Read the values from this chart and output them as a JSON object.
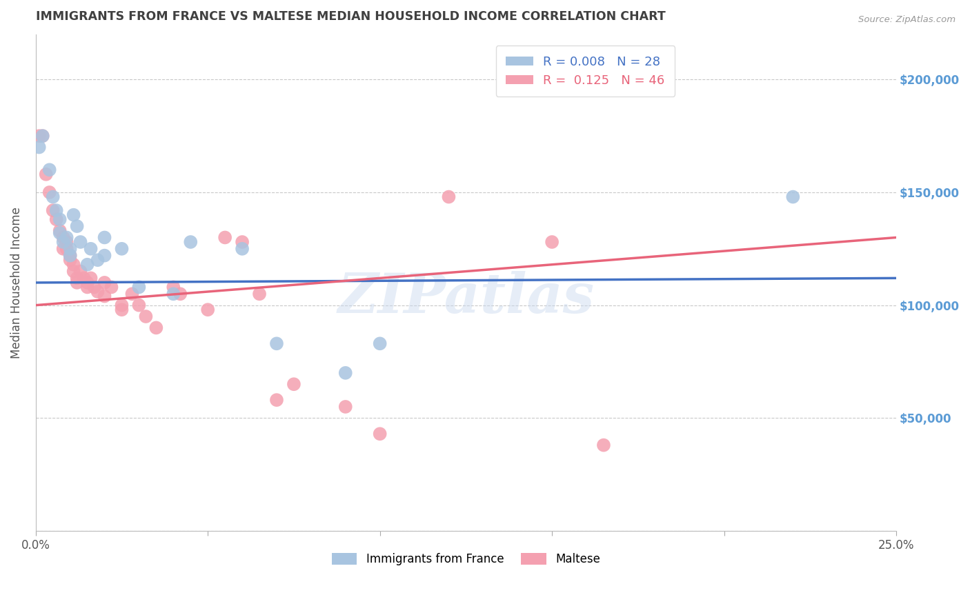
{
  "title": "IMMIGRANTS FROM FRANCE VS MALTESE MEDIAN HOUSEHOLD INCOME CORRELATION CHART",
  "source": "Source: ZipAtlas.com",
  "ylabel": "Median Household Income",
  "xlim": [
    0.0,
    0.25
  ],
  "ylim": [
    0,
    220000
  ],
  "xticks": [
    0.0,
    0.05,
    0.1,
    0.15,
    0.2,
    0.25
  ],
  "xtick_labels": [
    "0.0%",
    "",
    "",
    "",
    "",
    "25.0%"
  ],
  "yticks": [
    0,
    50000,
    100000,
    150000,
    200000
  ],
  "ytick_labels": [
    "",
    "$50,000",
    "$100,000",
    "$150,000",
    "$200,000"
  ],
  "legend_labels_bottom": [
    "Immigrants from France",
    "Maltese"
  ],
  "watermark": "ZIPatlas",
  "blue_scatter": [
    [
      0.001,
      170000
    ],
    [
      0.002,
      175000
    ],
    [
      0.004,
      160000
    ],
    [
      0.005,
      148000
    ],
    [
      0.006,
      142000
    ],
    [
      0.007,
      138000
    ],
    [
      0.007,
      132000
    ],
    [
      0.008,
      128000
    ],
    [
      0.009,
      130000
    ],
    [
      0.01,
      125000
    ],
    [
      0.01,
      122000
    ],
    [
      0.011,
      140000
    ],
    [
      0.012,
      135000
    ],
    [
      0.013,
      128000
    ],
    [
      0.015,
      118000
    ],
    [
      0.016,
      125000
    ],
    [
      0.018,
      120000
    ],
    [
      0.02,
      130000
    ],
    [
      0.02,
      122000
    ],
    [
      0.025,
      125000
    ],
    [
      0.03,
      108000
    ],
    [
      0.04,
      105000
    ],
    [
      0.045,
      128000
    ],
    [
      0.06,
      125000
    ],
    [
      0.07,
      83000
    ],
    [
      0.09,
      70000
    ],
    [
      0.1,
      83000
    ],
    [
      0.22,
      148000
    ]
  ],
  "pink_scatter": [
    [
      0.001,
      175000
    ],
    [
      0.002,
      175000
    ],
    [
      0.003,
      158000
    ],
    [
      0.004,
      150000
    ],
    [
      0.005,
      142000
    ],
    [
      0.006,
      138000
    ],
    [
      0.007,
      133000
    ],
    [
      0.008,
      130000
    ],
    [
      0.008,
      125000
    ],
    [
      0.009,
      128000
    ],
    [
      0.009,
      125000
    ],
    [
      0.01,
      122000
    ],
    [
      0.01,
      120000
    ],
    [
      0.011,
      118000
    ],
    [
      0.011,
      115000
    ],
    [
      0.012,
      112000
    ],
    [
      0.012,
      110000
    ],
    [
      0.013,
      115000
    ],
    [
      0.014,
      112000
    ],
    [
      0.015,
      110000
    ],
    [
      0.015,
      108000
    ],
    [
      0.016,
      112000
    ],
    [
      0.017,
      108000
    ],
    [
      0.018,
      106000
    ],
    [
      0.02,
      110000
    ],
    [
      0.02,
      104000
    ],
    [
      0.022,
      108000
    ],
    [
      0.025,
      100000
    ],
    [
      0.025,
      98000
    ],
    [
      0.028,
      105000
    ],
    [
      0.03,
      100000
    ],
    [
      0.032,
      95000
    ],
    [
      0.035,
      90000
    ],
    [
      0.04,
      108000
    ],
    [
      0.042,
      105000
    ],
    [
      0.05,
      98000
    ],
    [
      0.055,
      130000
    ],
    [
      0.06,
      128000
    ],
    [
      0.065,
      105000
    ],
    [
      0.07,
      58000
    ],
    [
      0.075,
      65000
    ],
    [
      0.09,
      55000
    ],
    [
      0.1,
      43000
    ],
    [
      0.12,
      148000
    ],
    [
      0.15,
      128000
    ],
    [
      0.165,
      38000
    ]
  ],
  "blue_line": {
    "x0": 0.0,
    "y0": 110000,
    "x1": 0.25,
    "y1": 112000
  },
  "pink_line": {
    "x0": 0.0,
    "y0": 100000,
    "x1": 0.25,
    "y1": 130000
  },
  "blue_line_color": "#4472c4",
  "pink_line_color": "#e8647a",
  "blue_dot_color": "#a8c4e0",
  "pink_dot_color": "#f4a0b0",
  "background_color": "#ffffff",
  "grid_color": "#c8c8c8",
  "title_color": "#404040",
  "axis_label_color": "#555555",
  "ytick_right_color": "#5b9bd5"
}
